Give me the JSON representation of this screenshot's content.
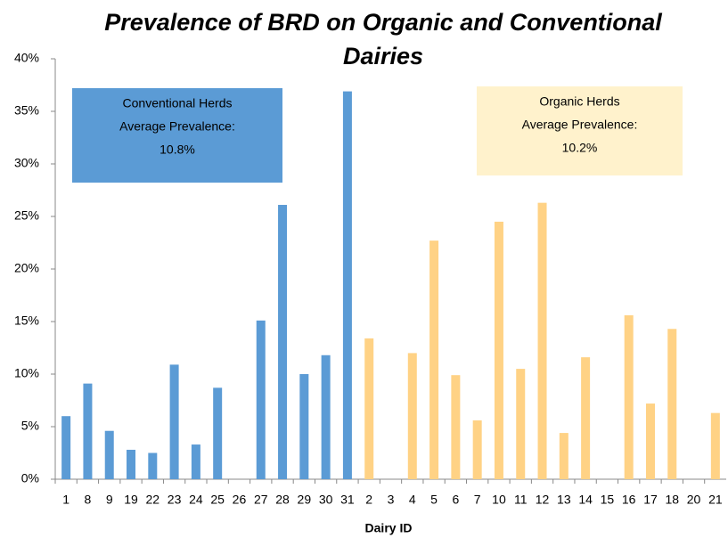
{
  "chart_data": {
    "type": "bar",
    "title": "Prevalence of BRD on Organic and Conventional Dairies",
    "x_label": "Dairy ID",
    "categories": [
      "1",
      "8",
      "9",
      "19",
      "22",
      "23",
      "24",
      "25",
      "26",
      "27",
      "28",
      "29",
      "30",
      "31",
      "2",
      "3",
      "4",
      "5",
      "6",
      "7",
      "10",
      "11",
      "12",
      "13",
      "14",
      "15",
      "16",
      "17",
      "18",
      "20",
      "21"
    ],
    "series": [
      {
        "name": "Conventional Herds",
        "color": "#5b9bd5",
        "values": [
          6.0,
          9.1,
          4.6,
          2.8,
          2.5,
          10.9,
          3.3,
          8.7,
          0,
          15.1,
          26.1,
          10.0,
          11.8,
          36.9,
          null,
          null,
          null,
          null,
          null,
          null,
          null,
          null,
          null,
          null,
          null,
          null,
          null,
          null,
          null,
          null,
          null
        ]
      },
      {
        "name": "Organic Herds",
        "color": "#ffd285",
        "values": [
          null,
          null,
          null,
          null,
          null,
          null,
          null,
          null,
          null,
          null,
          null,
          null,
          null,
          null,
          13.4,
          0,
          12.0,
          22.7,
          9.9,
          5.6,
          24.5,
          10.5,
          26.3,
          4.4,
          11.6,
          0,
          15.6,
          7.2,
          14.3,
          0,
          6.3
        ]
      }
    ],
    "annotations": [
      {
        "lines": [
          "Conventional Herds",
          "Average Prevalence:",
          "10.8%"
        ],
        "color": "#5b9bd5"
      },
      {
        "lines": [
          "Organic Herds",
          "Average Prevalence:",
          "10.2%"
        ],
        "color": "#fff2cc"
      }
    ],
    "ylim": [
      0,
      40
    ],
    "yticks": [
      {
        "value": 0,
        "label": "0%"
      },
      {
        "value": 5,
        "label": "5%"
      },
      {
        "value": 10,
        "label": "10%"
      },
      {
        "value": 15,
        "label": "15%"
      },
      {
        "value": 20,
        "label": "20%"
      },
      {
        "value": 25,
        "label": "25%"
      },
      {
        "value": 30,
        "label": "30%"
      },
      {
        "value": 35,
        "label": "35%"
      },
      {
        "value": 40,
        "label": "40%"
      }
    ],
    "grid": false
  }
}
